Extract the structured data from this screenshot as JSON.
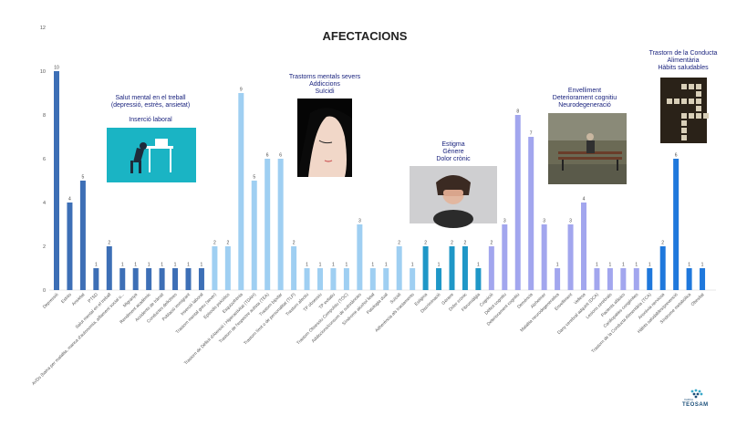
{
  "chart_data": {
    "type": "bar",
    "title": "AFECTACIONS",
    "ylim": [
      0,
      12
    ],
    "yticks": [
      0,
      2,
      4,
      6,
      8,
      10,
      12
    ],
    "grid": false,
    "categories": [
      "Depressió",
      "Estrès",
      "Ansietat",
      "PTSD",
      "Salut mental en el treball",
      "AVDs (baixa per malaltia, manca d'autonomia, aïllament social o...",
      "Migranya",
      "Rendiment acadèmic",
      "Accidents de trànsit",
      "Conductes delictives",
      "Població immigrant",
      "Inserció laboral",
      "Trastorn mental greu (sever)",
      "Episodis psicòtics",
      "Esquizofrènia",
      "Trastorn de Dèficit d'Atenció i Hiperactivitat (TDAH)",
      "Trastorn de l'espectre autista (TEA)",
      "Trastorn bipolar",
      "Trastorn límit o de personalitat (TLP)",
      "Trastorn afectiu",
      "TP obsessiu",
      "TP evitatiu",
      "Trastorn Obsessiu Compulsiu (TOC)",
      "Addiccions/consum de substàncies",
      "Síndrome alcohol fetal",
      "Patologia dual",
      "Suïcidi",
      "Adherència als tractaments",
      "Estigma",
      "Discriminació",
      "Gènere",
      "Dolor crònic",
      "Fibromiàlgia",
      "Cognició",
      "Dèficit cognitiu",
      "Deteriorament cognitiu",
      "Demència",
      "Alzheimer",
      "Malaltia neurodegenerativa",
      "Envelliment",
      "Vellesa",
      "Dany cerebral adquirit (DCA)",
      "Lesions cerebrals",
      "Pacients afàsics",
      "Cardiopaties congènites",
      "Trastorn de la Conducta Alimentària (TCA)",
      "Anorèxia nerviosa",
      "Hàbits saludables/prevenció",
      "Síndrome metabòlica",
      "Obesitat"
    ],
    "values": [
      10,
      4,
      5,
      1,
      2,
      1,
      1,
      1,
      1,
      1,
      1,
      1,
      2,
      2,
      9,
      5,
      6,
      6,
      2,
      1,
      1,
      1,
      1,
      3,
      1,
      1,
      2,
      1,
      2,
      1,
      2,
      2,
      1,
      2,
      3,
      8,
      7,
      3,
      1,
      3,
      4,
      1,
      1,
      1,
      1,
      1,
      2,
      6,
      1,
      1
    ],
    "series_colors": [
      {
        "range": [
          0,
          11
        ],
        "color": "#3d6fb6"
      },
      {
        "range": [
          12,
          27
        ],
        "color": "#9fcff2"
      },
      {
        "range": [
          28,
          32
        ],
        "color": "#1f97c7"
      },
      {
        "range": [
          33,
          44
        ],
        "color": "#a2a6ee"
      },
      {
        "range": [
          45,
          49
        ],
        "color": "#1f78dc"
      }
    ],
    "annotations": [
      {
        "lines": [
          "Salut mental en el treball",
          "(depressió, estrès, ansietat)",
          "",
          "Inserció laboral"
        ]
      },
      {
        "lines": [
          "Trastorns mentals severs",
          "Addiccions",
          "Suïcidi"
        ]
      },
      {
        "lines": [
          "Estigma",
          "Gènere",
          "Dolor crònic"
        ]
      },
      {
        "lines": [
          "Envelliment",
          "Deteriorament cognitiu",
          "Neurodegeneració"
        ]
      },
      {
        "lines": [
          "Trastorn de la Conducta",
          "Alimentària",
          "Hàbits saludables"
        ]
      }
    ]
  },
  "logo": {
    "text": "TEOSAM",
    "sub": "XARXA"
  }
}
